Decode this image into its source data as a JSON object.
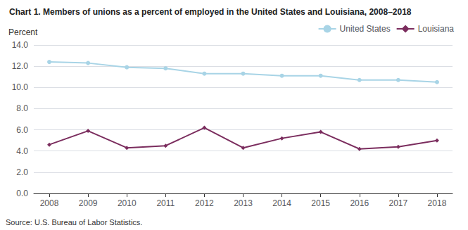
{
  "chart_data": {
    "type": "line",
    "title": "Chart 1. Members of unions as a percent of employed in the United States and Louisiana, 2008–2018",
    "y_label": "Percent",
    "annotations": [
      "Source: U.S. Bureau of Labor Statistics."
    ],
    "x": [
      2008,
      2009,
      2010,
      2011,
      2012,
      2013,
      2014,
      2015,
      2016,
      2017,
      2018
    ],
    "series": [
      {
        "name": "United States",
        "color": "#a8d4e6",
        "marker": "circle",
        "values": [
          12.4,
          12.3,
          11.9,
          11.8,
          11.3,
          11.3,
          11.1,
          11.1,
          10.7,
          10.7,
          10.5
        ]
      },
      {
        "name": "Louisiana",
        "color": "#7b2d5e",
        "marker": "diamond",
        "values": [
          4.6,
          5.9,
          4.3,
          4.5,
          6.2,
          4.3,
          5.2,
          5.8,
          4.2,
          4.4,
          5.0
        ]
      }
    ],
    "xlim": [
      2007.6,
      2018.4
    ],
    "xticks": [
      2008,
      2009,
      2010,
      2011,
      2012,
      2013,
      2014,
      2015,
      2016,
      2017,
      2018
    ],
    "ylim": [
      0.0,
      14.0
    ],
    "yticks": [
      {
        "value": 0,
        "label": "0.0"
      },
      {
        "value": 2,
        "label": "2.0"
      },
      {
        "value": 4,
        "label": "4.0"
      },
      {
        "value": 6,
        "label": "6.0"
      },
      {
        "value": 8,
        "label": "8.0"
      },
      {
        "value": 10,
        "label": "10.0"
      },
      {
        "value": 12,
        "label": "12.0"
      },
      {
        "value": 14,
        "label": "14.0"
      }
    ],
    "grid": true,
    "legend": "upper right"
  }
}
